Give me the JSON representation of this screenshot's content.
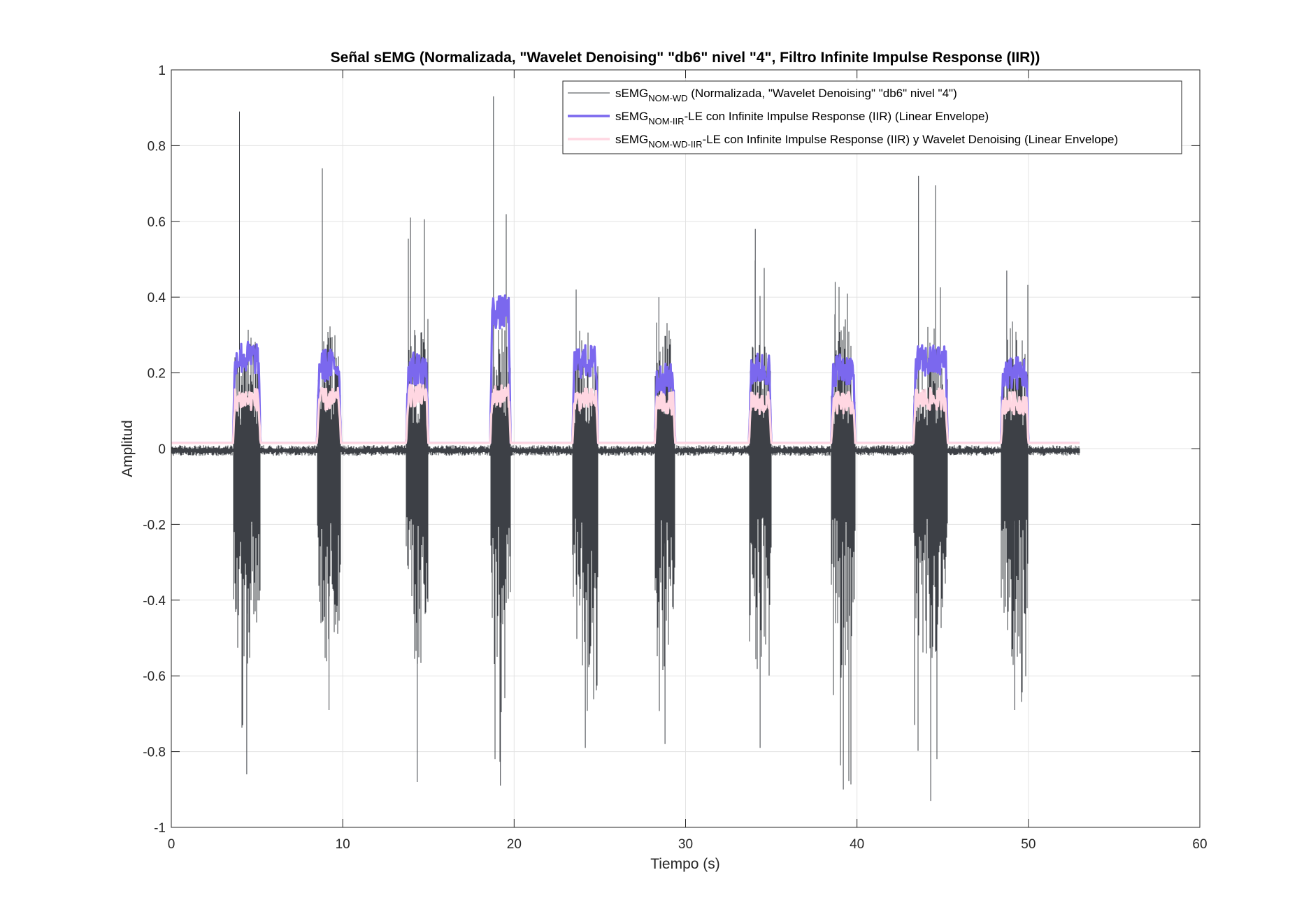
{
  "chart_data": {
    "type": "line",
    "title": "Señal sEMG (Normalizada, \"Wavelet Denoising\" \"db6\" nivel \"4\", Filtro Infinite Impulse Response (IIR))",
    "xlabel": "Tiempo (s)",
    "ylabel": "Amplitud",
    "xlim": [
      0,
      60
    ],
    "ylim": [
      -1,
      1
    ],
    "xticks": [
      0,
      10,
      20,
      30,
      40,
      50,
      60
    ],
    "xtick_labels": [
      "0",
      "10",
      "20",
      "30",
      "40",
      "50",
      "60"
    ],
    "yticks": [
      -1,
      -0.8,
      -0.6,
      -0.4,
      -0.2,
      0,
      0.2,
      0.4,
      0.6,
      0.8,
      1
    ],
    "ytick_labels": [
      "-1",
      "-0.8",
      "-0.6",
      "-0.4",
      "-0.2",
      "0",
      "0.2",
      "0.4",
      "0.6",
      "0.8",
      "1"
    ],
    "grid": true,
    "legend_position": "top-right",
    "signal_duration_s": 53,
    "baseline_raw": -0.005,
    "baseline_envelope": 0.015,
    "bursts": [
      {
        "start": 3.6,
        "end": 5.2,
        "raw_max": 0.89,
        "raw_min": -0.86,
        "env_iir": 0.24,
        "env_wd": 0.13
      },
      {
        "start": 8.5,
        "end": 9.9,
        "raw_max": 0.74,
        "raw_min": -0.69,
        "env_iir": 0.22,
        "env_wd": 0.13
      },
      {
        "start": 13.7,
        "end": 15.0,
        "raw_max": 0.61,
        "raw_min": -0.88,
        "env_iir": 0.21,
        "env_wd": 0.14
      },
      {
        "start": 18.6,
        "end": 19.8,
        "raw_max": 0.93,
        "raw_min": -0.89,
        "env_iir": 0.36,
        "env_wd": 0.14
      },
      {
        "start": 23.4,
        "end": 24.9,
        "raw_max": 0.42,
        "raw_min": -0.79,
        "env_iir": 0.23,
        "env_wd": 0.13
      },
      {
        "start": 28.2,
        "end": 29.4,
        "raw_max": 0.4,
        "raw_min": -0.78,
        "env_iir": 0.18,
        "env_wd": 0.12
      },
      {
        "start": 33.7,
        "end": 35.0,
        "raw_max": 0.58,
        "raw_min": -0.79,
        "env_iir": 0.21,
        "env_wd": 0.12
      },
      {
        "start": 38.5,
        "end": 39.9,
        "raw_max": 0.44,
        "raw_min": -0.9,
        "env_iir": 0.21,
        "env_wd": 0.12
      },
      {
        "start": 43.3,
        "end": 45.3,
        "raw_max": 0.72,
        "raw_min": -0.93,
        "env_iir": 0.23,
        "env_wd": 0.13
      },
      {
        "start": 48.4,
        "end": 50.0,
        "raw_max": 0.47,
        "raw_min": -0.69,
        "env_iir": 0.2,
        "env_wd": 0.12
      }
    ],
    "series": [
      {
        "base": "sEMG",
        "sub": "NOM-WD",
        "suffix": " (Normalizada, \"Wavelet Denoising\" \"db6\" nivel \"4\")",
        "color": "#3d4046"
      },
      {
        "base": "sEMG",
        "sub": "NOM-IIR",
        "suffix": "-LE con Infinite Impulse Response (IIR) (Linear Envelope)",
        "color": "#7b68ee"
      },
      {
        "base": "sEMG",
        "sub": "NOM-WD-IIR",
        "suffix": "-LE con Infinite Impulse Response (IIR) y Wavelet Denoising (Linear Envelope)",
        "color": "#ffd7e2"
      }
    ]
  }
}
